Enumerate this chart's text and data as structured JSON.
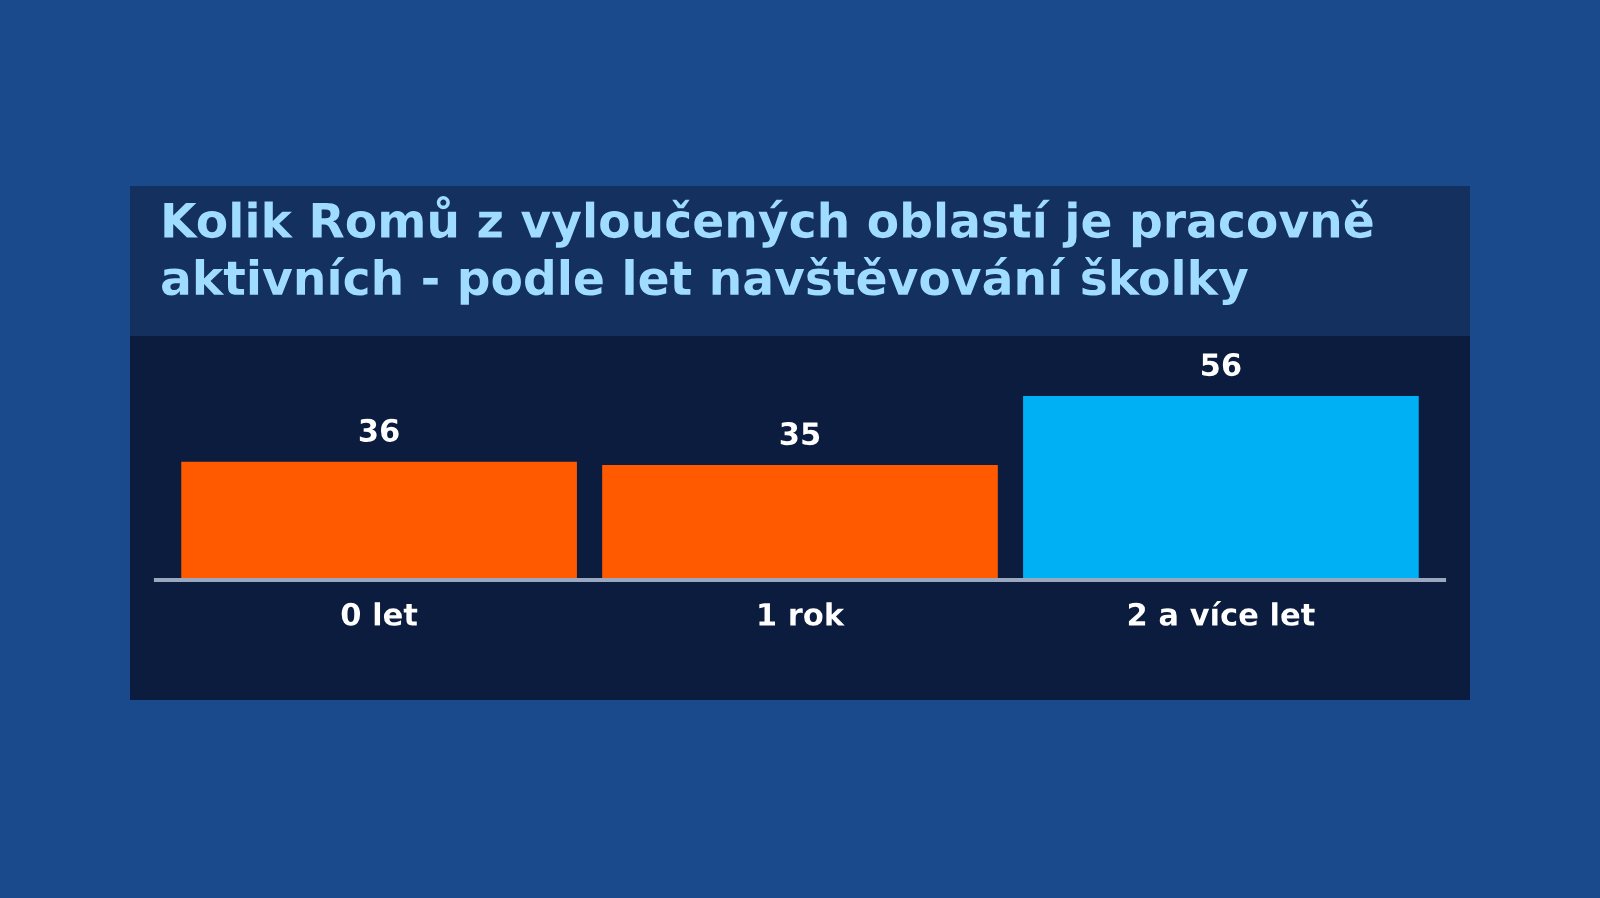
{
  "chart_data": {
    "type": "bar",
    "title": "Kolik Romů z vyloučených oblastí je pracovně\naktivních - podle let navštěvování školky",
    "categories": [
      "0 let",
      "1 rok",
      "2 a více let"
    ],
    "values": [
      36,
      35,
      56
    ],
    "colors": [
      "#ff5a00",
      "#ff5a00",
      "#00b0f5"
    ],
    "data_labels": true,
    "grid": false,
    "legend": false
  }
}
